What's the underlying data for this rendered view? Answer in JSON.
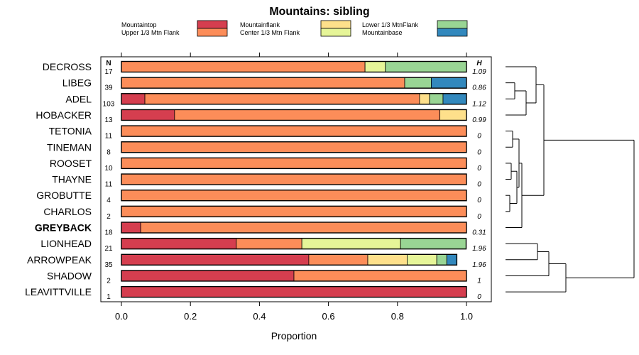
{
  "chart_data": {
    "type": "bar",
    "orientation": "horizontal",
    "stacked": true,
    "title": "Mountains: sibling",
    "xlabel": "Proportion",
    "ylabel": "",
    "xlim": [
      0,
      1
    ],
    "x_ticks": [
      "0.0",
      "0.2",
      "0.4",
      "0.6",
      "0.8",
      "1.0"
    ],
    "x_tick_values": [
      0,
      0.2,
      0.4,
      0.6,
      0.8,
      1.0
    ],
    "n_header": "N",
    "h_header": "H",
    "legend_position": "top",
    "has_dendrogram": true,
    "series": [
      {
        "name": "Mountaintop",
        "color": "#d53e4f"
      },
      {
        "name": "Upper 1/3 Mtn Flank",
        "color": "#fc8d59"
      },
      {
        "name": "Mountainflank",
        "color": "#fee08b"
      },
      {
        "name": "Center 1/3 Mtn Flank",
        "color": "#e6f598"
      },
      {
        "name": "Lower 1/3 MtnFlank",
        "color": "#99d594"
      },
      {
        "name": "Mountainbase",
        "color": "#3288bd"
      }
    ],
    "categories": [
      {
        "name": "DECROSS",
        "n": "17",
        "h": "1.09",
        "bold": false,
        "values": [
          0,
          0.706,
          0,
          0.059,
          0.235,
          0
        ]
      },
      {
        "name": "LIBEG",
        "n": "39",
        "h": "0.86",
        "bold": false,
        "values": [
          0,
          0.821,
          0,
          0,
          0.077,
          0.102
        ]
      },
      {
        "name": "ADEL",
        "n": "103",
        "h": "1.12",
        "bold": false,
        "values": [
          0.068,
          0.796,
          0.029,
          0,
          0.039,
          0.068
        ]
      },
      {
        "name": "HOBACKER",
        "n": "13",
        "h": "0.99",
        "bold": false,
        "values": [
          0.154,
          0.769,
          0.077,
          0,
          0,
          0
        ]
      },
      {
        "name": "TETONIA",
        "n": "11",
        "h": "0",
        "bold": false,
        "values": [
          0,
          1,
          0,
          0,
          0,
          0
        ]
      },
      {
        "name": "TINEMAN",
        "n": "8",
        "h": "0",
        "bold": false,
        "values": [
          0,
          1,
          0,
          0,
          0,
          0
        ]
      },
      {
        "name": "ROOSET",
        "n": "10",
        "h": "0",
        "bold": false,
        "values": [
          0,
          1,
          0,
          0,
          0,
          0
        ]
      },
      {
        "name": "THAYNE",
        "n": "11",
        "h": "0",
        "bold": false,
        "values": [
          0,
          1,
          0,
          0,
          0,
          0
        ]
      },
      {
        "name": "GROBUTTE",
        "n": "4",
        "h": "0",
        "bold": false,
        "values": [
          0,
          1,
          0,
          0,
          0,
          0
        ]
      },
      {
        "name": "CHARLOS",
        "n": "2",
        "h": "0",
        "bold": false,
        "values": [
          0,
          1,
          0,
          0,
          0,
          0
        ]
      },
      {
        "name": "GREYBACK",
        "n": "18",
        "h": "0.31",
        "bold": true,
        "values": [
          0.056,
          0.944,
          0,
          0,
          0,
          0
        ]
      },
      {
        "name": "LIONHEAD",
        "n": "21",
        "h": "1.96",
        "bold": false,
        "values": [
          0.333,
          0.19,
          0,
          0.286,
          0.19,
          0
        ]
      },
      {
        "name": "ARROWPEAK",
        "n": "35",
        "h": "1.96",
        "bold": false,
        "values": [
          0.543,
          0.171,
          0.114,
          0.086,
          0.029,
          0.029
        ]
      },
      {
        "name": "SHADOW",
        "n": "2",
        "h": "1",
        "bold": false,
        "values": [
          0.5,
          0.5,
          0,
          0,
          0,
          0
        ]
      },
      {
        "name": "LEAVITTVILLE",
        "n": "1",
        "h": "0",
        "bold": false,
        "values": [
          1,
          0,
          0,
          0,
          0,
          0
        ]
      }
    ]
  }
}
